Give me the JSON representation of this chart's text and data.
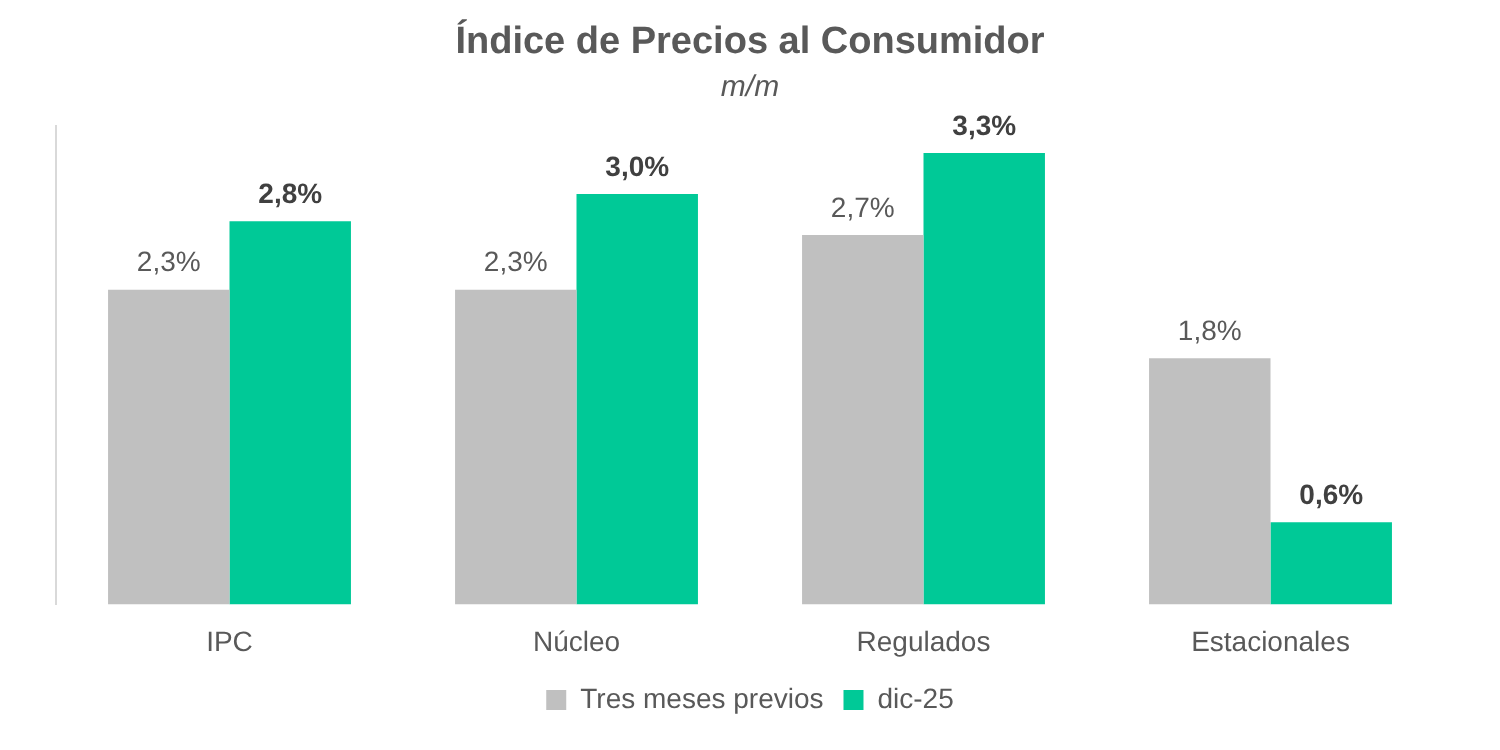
{
  "chart_data": {
    "type": "bar",
    "title": "Índice de Precios al Consumidor",
    "subtitle": "m/m",
    "categories": [
      "IPC",
      "Núcleo",
      "Regulados",
      "Estacionales"
    ],
    "series": [
      {
        "name": "Tres meses previos",
        "color": "#c0c0c0",
        "values": [
          2.3,
          2.3,
          2.7,
          1.8
        ],
        "value_labels": [
          "2,3%",
          "2,3%",
          "2,7%",
          "1,8%"
        ]
      },
      {
        "name": "dic-25",
        "color": "#00c997",
        "values": [
          2.8,
          3.0,
          3.3,
          0.6
        ],
        "value_labels": [
          "2,8%",
          "3,0%",
          "3,3%",
          "0,6%"
        ]
      }
    ],
    "legend": "bottom"
  }
}
